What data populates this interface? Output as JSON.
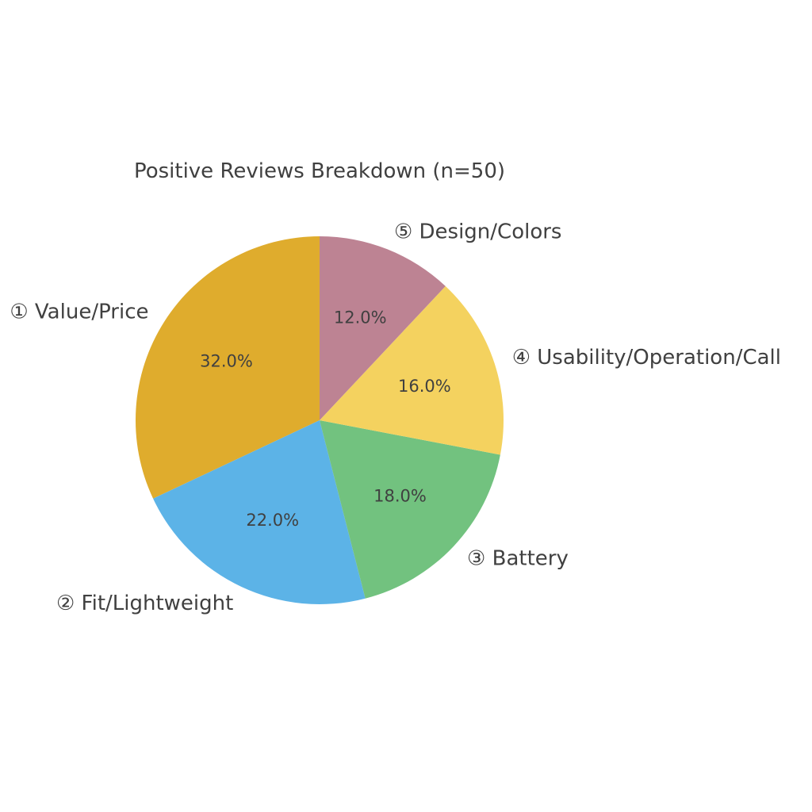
{
  "chart_data": {
    "type": "pie",
    "title": "Positive Reviews Breakdown (n=50)",
    "start_angle": "top",
    "direction": "counter-clockwise",
    "slices": [
      {
        "label": "① Value/Price",
        "value": 32.0,
        "pct_label": "32.0%",
        "color": "#dfac2d"
      },
      {
        "label": "② Fit/Lightweight",
        "value": 22.0,
        "pct_label": "22.0%",
        "color": "#5cb3e7"
      },
      {
        "label": "③ Battery",
        "value": 18.0,
        "pct_label": "18.0%",
        "color": "#72c27f"
      },
      {
        "label": "④ Usability/Operation/Call",
        "value": 16.0,
        "pct_label": "16.0%",
        "color": "#f4d25f"
      },
      {
        "label": "⑤ Design/Colors",
        "value": 12.0,
        "pct_label": "12.0%",
        "color": "#bd8393"
      }
    ]
  }
}
